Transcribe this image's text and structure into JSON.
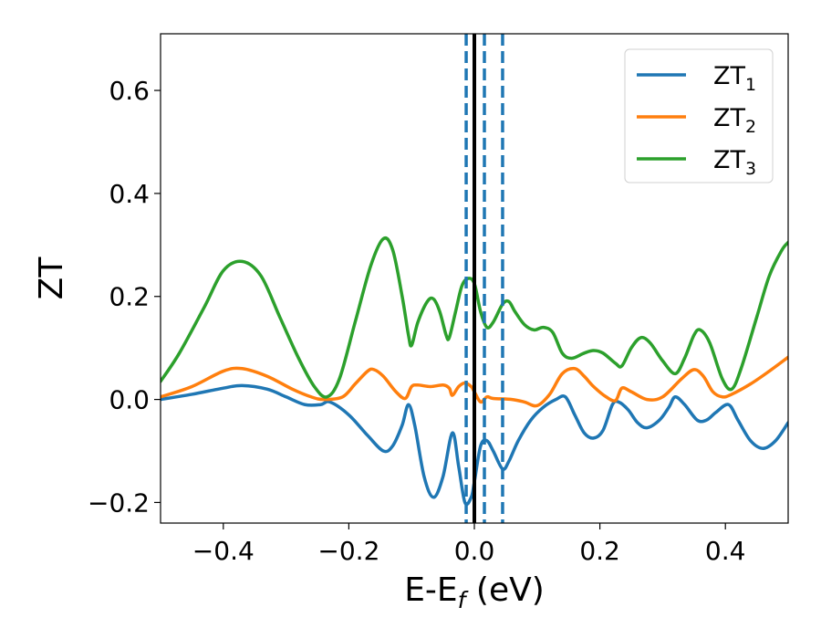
{
  "chart_data": {
    "type": "line",
    "title": "",
    "xlabel": "E-E",
    "xlabel_sub": "f",
    "xlabel_unit": " (eV)",
    "ylabel": "ZT",
    "xlim": [
      -0.5,
      0.5
    ],
    "ylim": [
      -0.24,
      0.71
    ],
    "xticks": [
      -0.4,
      -0.2,
      0.0,
      0.2,
      0.4
    ],
    "xtick_labels": [
      "−0.4",
      "−0.2",
      "0.0",
      "0.2",
      "0.4"
    ],
    "yticks": [
      -0.2,
      0.0,
      0.2,
      0.4,
      0.6
    ],
    "ytick_labels": [
      "−0.2",
      "0.0",
      "0.2",
      "0.4",
      "0.6"
    ],
    "grid": false,
    "legend_position": "top-right",
    "vlines": [
      {
        "x": 0.0,
        "style": "solid",
        "color": "#000000"
      },
      {
        "x": -0.013,
        "style": "dashed",
        "color": "#1f77b4"
      },
      {
        "x": 0.016,
        "style": "dashed",
        "color": "#1f77b4"
      },
      {
        "x": 0.045,
        "style": "dashed",
        "color": "#1f77b4"
      }
    ],
    "series": [
      {
        "name": "ZT",
        "name_sub": "1",
        "color": "#1f77b4",
        "points": [
          [
            -0.5,
            0.0
          ],
          [
            -0.45,
            0.01
          ],
          [
            -0.4,
            0.022
          ],
          [
            -0.37,
            0.027
          ],
          [
            -0.33,
            0.02
          ],
          [
            -0.3,
            0.005
          ],
          [
            -0.27,
            -0.01
          ],
          [
            -0.245,
            -0.01
          ],
          [
            -0.23,
            -0.005
          ],
          [
            -0.2,
            -0.03
          ],
          [
            -0.17,
            -0.07
          ],
          [
            -0.145,
            -0.1
          ],
          [
            -0.13,
            -0.09
          ],
          [
            -0.115,
            -0.05
          ],
          [
            -0.105,
            -0.01
          ],
          [
            -0.095,
            -0.05
          ],
          [
            -0.08,
            -0.15
          ],
          [
            -0.065,
            -0.19
          ],
          [
            -0.05,
            -0.15
          ],
          [
            -0.035,
            -0.065
          ],
          [
            -0.025,
            -0.13
          ],
          [
            -0.015,
            -0.2
          ],
          [
            -0.005,
            -0.19
          ],
          [
            0.0,
            -0.16
          ],
          [
            0.01,
            -0.09
          ],
          [
            0.02,
            -0.08
          ],
          [
            0.03,
            -0.1
          ],
          [
            0.045,
            -0.135
          ],
          [
            0.055,
            -0.12
          ],
          [
            0.07,
            -0.08
          ],
          [
            0.09,
            -0.04
          ],
          [
            0.11,
            -0.015
          ],
          [
            0.13,
            0.0
          ],
          [
            0.145,
            0.005
          ],
          [
            0.16,
            -0.03
          ],
          [
            0.175,
            -0.065
          ],
          [
            0.19,
            -0.075
          ],
          [
            0.205,
            -0.06
          ],
          [
            0.22,
            -0.01
          ],
          [
            0.23,
            -0.005
          ],
          [
            0.245,
            -0.02
          ],
          [
            0.26,
            -0.045
          ],
          [
            0.275,
            -0.055
          ],
          [
            0.295,
            -0.04
          ],
          [
            0.31,
            -0.015
          ],
          [
            0.32,
            0.005
          ],
          [
            0.335,
            -0.01
          ],
          [
            0.355,
            -0.04
          ],
          [
            0.37,
            -0.04
          ],
          [
            0.385,
            -0.025
          ],
          [
            0.405,
            -0.01
          ],
          [
            0.42,
            -0.04
          ],
          [
            0.44,
            -0.08
          ],
          [
            0.46,
            -0.095
          ],
          [
            0.48,
            -0.08
          ],
          [
            0.5,
            -0.045
          ]
        ]
      },
      {
        "name": "ZT",
        "name_sub": "2",
        "color": "#ff7f0e",
        "points": [
          [
            -0.5,
            0.005
          ],
          [
            -0.45,
            0.025
          ],
          [
            -0.4,
            0.055
          ],
          [
            -0.37,
            0.06
          ],
          [
            -0.33,
            0.045
          ],
          [
            -0.29,
            0.02
          ],
          [
            -0.26,
            0.005
          ],
          [
            -0.24,
            0.0
          ],
          [
            -0.21,
            0.005
          ],
          [
            -0.19,
            0.03
          ],
          [
            -0.17,
            0.055
          ],
          [
            -0.16,
            0.058
          ],
          [
            -0.145,
            0.045
          ],
          [
            -0.125,
            0.015
          ],
          [
            -0.11,
            0.002
          ],
          [
            -0.1,
            0.025
          ],
          [
            -0.09,
            0.028
          ],
          [
            -0.07,
            0.025
          ],
          [
            -0.05,
            0.028
          ],
          [
            -0.04,
            0.022
          ],
          [
            -0.035,
            0.008
          ],
          [
            -0.025,
            0.025
          ],
          [
            -0.015,
            0.032
          ],
          [
            -0.005,
            0.025
          ],
          [
            0.0,
            0.015
          ],
          [
            0.01,
            -0.005
          ],
          [
            0.02,
            0.005
          ],
          [
            0.03,
            0.002
          ],
          [
            0.06,
            0.0
          ],
          [
            0.08,
            -0.005
          ],
          [
            0.1,
            -0.012
          ],
          [
            0.12,
            0.01
          ],
          [
            0.14,
            0.05
          ],
          [
            0.16,
            0.06
          ],
          [
            0.175,
            0.045
          ],
          [
            0.19,
            0.025
          ],
          [
            0.21,
            0.005
          ],
          [
            0.225,
            -0.002
          ],
          [
            0.235,
            0.022
          ],
          [
            0.25,
            0.015
          ],
          [
            0.275,
            0.0
          ],
          [
            0.3,
            0.005
          ],
          [
            0.33,
            0.04
          ],
          [
            0.35,
            0.058
          ],
          [
            0.365,
            0.045
          ],
          [
            0.38,
            0.015
          ],
          [
            0.395,
            0.005
          ],
          [
            0.41,
            0.01
          ],
          [
            0.44,
            0.03
          ],
          [
            0.47,
            0.055
          ],
          [
            0.5,
            0.082
          ]
        ]
      },
      {
        "name": "ZT",
        "name_sub": "3",
        "color": "#2ca02c",
        "points": [
          [
            -0.5,
            0.035
          ],
          [
            -0.47,
            0.09
          ],
          [
            -0.43,
            0.18
          ],
          [
            -0.4,
            0.25
          ],
          [
            -0.37,
            0.268
          ],
          [
            -0.34,
            0.24
          ],
          [
            -0.31,
            0.16
          ],
          [
            -0.28,
            0.08
          ],
          [
            -0.255,
            0.025
          ],
          [
            -0.235,
            0.005
          ],
          [
            -0.215,
            0.04
          ],
          [
            -0.19,
            0.15
          ],
          [
            -0.165,
            0.26
          ],
          [
            -0.145,
            0.312
          ],
          [
            -0.13,
            0.29
          ],
          [
            -0.115,
            0.2
          ],
          [
            -0.105,
            0.125
          ],
          [
            -0.1,
            0.105
          ],
          [
            -0.09,
            0.15
          ],
          [
            -0.075,
            0.19
          ],
          [
            -0.065,
            0.195
          ],
          [
            -0.055,
            0.17
          ],
          [
            -0.045,
            0.125
          ],
          [
            -0.04,
            0.12
          ],
          [
            -0.03,
            0.17
          ],
          [
            -0.02,
            0.22
          ],
          [
            -0.01,
            0.235
          ],
          [
            0.0,
            0.225
          ],
          [
            0.01,
            0.17
          ],
          [
            0.02,
            0.14
          ],
          [
            0.03,
            0.15
          ],
          [
            0.045,
            0.185
          ],
          [
            0.055,
            0.19
          ],
          [
            0.065,
            0.17
          ],
          [
            0.08,
            0.145
          ],
          [
            0.095,
            0.135
          ],
          [
            0.11,
            0.14
          ],
          [
            0.125,
            0.13
          ],
          [
            0.14,
            0.09
          ],
          [
            0.155,
            0.08
          ],
          [
            0.175,
            0.09
          ],
          [
            0.19,
            0.095
          ],
          [
            0.205,
            0.09
          ],
          [
            0.225,
            0.07
          ],
          [
            0.235,
            0.065
          ],
          [
            0.25,
            0.1
          ],
          [
            0.265,
            0.12
          ],
          [
            0.28,
            0.11
          ],
          [
            0.3,
            0.075
          ],
          [
            0.32,
            0.05
          ],
          [
            0.335,
            0.08
          ],
          [
            0.35,
            0.125
          ],
          [
            0.36,
            0.135
          ],
          [
            0.375,
            0.11
          ],
          [
            0.395,
            0.04
          ],
          [
            0.41,
            0.02
          ],
          [
            0.425,
            0.06
          ],
          [
            0.45,
            0.16
          ],
          [
            0.47,
            0.24
          ],
          [
            0.49,
            0.29
          ],
          [
            0.5,
            0.305
          ]
        ]
      }
    ]
  }
}
